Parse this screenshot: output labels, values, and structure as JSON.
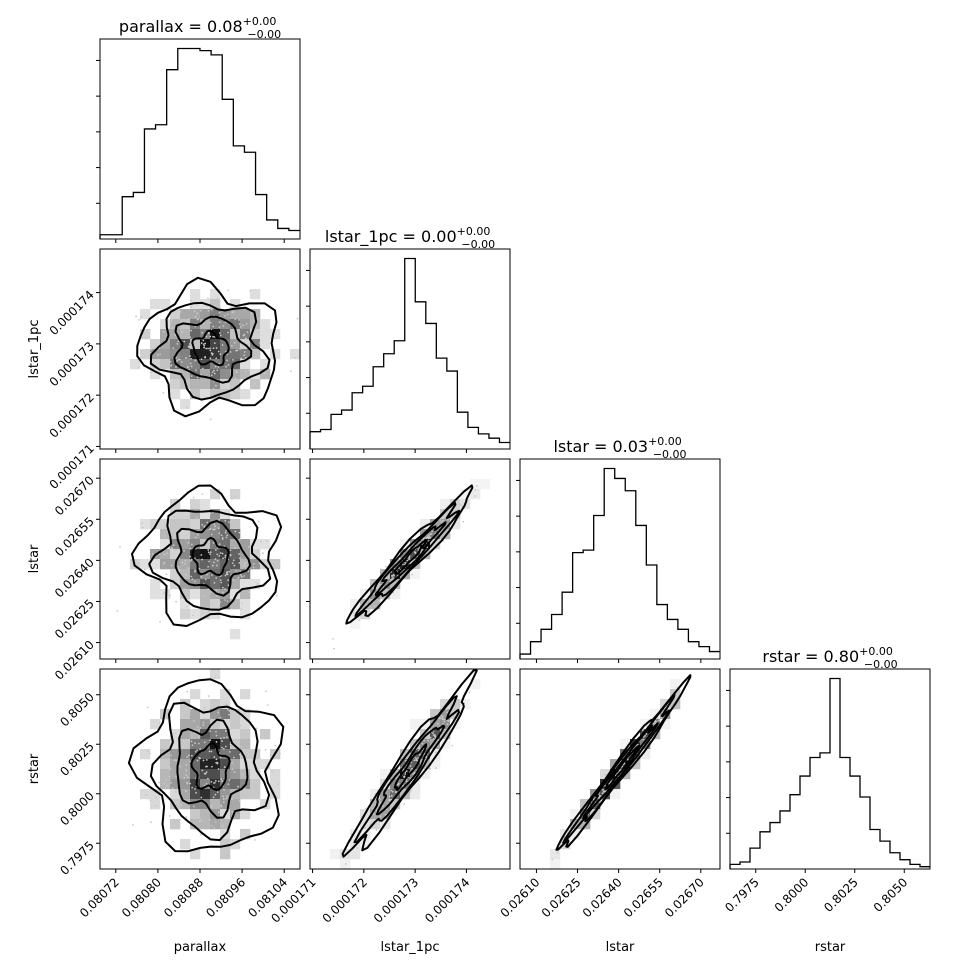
{
  "colors": {
    "ink": "#000000",
    "background": "#ffffff",
    "scatter": "#c8c8c8"
  },
  "chart_data": {
    "type": "corner",
    "parameters": [
      {
        "name": "parallax",
        "title": "parallax = 0.08",
        "title_sup": "+0.00",
        "title_sub": "−0.00",
        "xlabel": "parallax",
        "ylabel": "",
        "range": [
          0.08069,
          0.08107
        ],
        "tick_values": [
          0.08072,
          0.0808,
          0.08088,
          0.08096,
          0.08104
        ],
        "tick_labels": [
          "0.08072",
          "0.08080",
          "0.08088",
          "0.08096",
          "0.08104"
        ],
        "center": 0.0809,
        "spread": 5.5e-05,
        "hist_counts": [
          2,
          2,
          20,
          22,
          52,
          54,
          80,
          90,
          90,
          89,
          87,
          66,
          44,
          41,
          21,
          9,
          5,
          4
        ]
      },
      {
        "name": "lstar_1pc",
        "title": "lstar_1pc = 0.00",
        "title_sup": "+0.00",
        "title_sub": "−0.00",
        "xlabel": "lstar_1pc",
        "ylabel": "lstar_1pc",
        "range": [
          0.00017095,
          0.00017485
        ],
        "tick_values": [
          0.000171,
          0.000172,
          0.000173,
          0.000174
        ],
        "tick_labels": [
          "0.000171",
          "0.000172",
          "0.000173",
          "0.000174"
        ],
        "center": 0.0001729,
        "spread": 5e-07,
        "hist_counts": [
          8,
          9,
          16,
          18,
          26,
          29,
          38,
          44,
          50,
          88,
          68,
          58,
          42,
          36,
          17,
          10,
          7,
          5,
          3
        ]
      },
      {
        "name": "lstar",
        "title": "lstar = 0.03",
        "title_sup": "+0.00",
        "title_sub": "−0.00",
        "xlabel": "lstar",
        "ylabel": "lstar",
        "range": [
          0.02604,
          0.02677
        ],
        "tick_values": [
          0.0261,
          0.02625,
          0.0264,
          0.02655,
          0.0267
        ],
        "tick_labels": [
          "0.02610",
          "0.02625",
          "0.02640",
          "0.02655",
          "0.02670"
        ],
        "center": 0.02641,
        "spread": 0.0001,
        "hist_counts": [
          2,
          7,
          12,
          18,
          27,
          43,
          44,
          58,
          77,
          73,
          68,
          54,
          38,
          22,
          16,
          12,
          7,
          5,
          3
        ]
      },
      {
        "name": "rstar",
        "title": "rstar = 0.80",
        "title_sup": "+0.00",
        "title_sub": "−0.00",
        "xlabel": "rstar",
        "ylabel": "rstar",
        "range": [
          0.7962,
          0.8063
        ],
        "tick_values": [
          0.7975,
          0.8,
          0.8025,
          0.805
        ],
        "tick_labels": [
          "0.7975",
          "0.8000",
          "0.8025",
          "0.8050"
        ],
        "center": 0.8013,
        "spread": 0.0018,
        "hist_counts": [
          2,
          3,
          9,
          16,
          20,
          25,
          32,
          40,
          48,
          50,
          82,
          48,
          40,
          31,
          17,
          12,
          7,
          4,
          2,
          1
        ]
      }
    ],
    "correlations": {
      "0-1": -0.05,
      "0-2": -0.05,
      "1-2": 0.97,
      "0-3": -0.05,
      "1-3": 0.96,
      "2-3": 0.99
    }
  }
}
